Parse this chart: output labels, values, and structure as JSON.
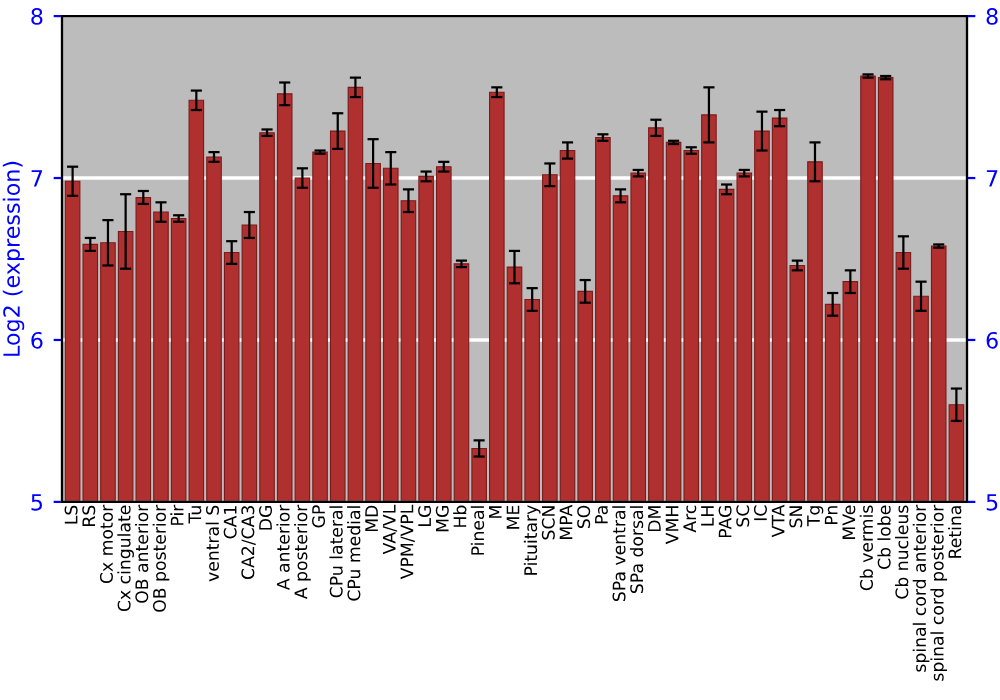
{
  "chart_data": {
    "type": "bar",
    "ylabel": "Log2 (expression)",
    "categories": [
      "LS",
      "RS",
      "Cx motor",
      "Cx cingulate",
      "OB anterior",
      "OB posterior",
      "Pir",
      "Tu",
      "ventral S",
      "CA1",
      "CA2/CA3",
      "DG",
      "A anterior",
      "A posterior",
      "GP",
      "CPu lateral",
      "CPu medial",
      "MD",
      "VA/VL",
      "VPM/VPL",
      "LG",
      "MG",
      "Hb",
      "Pineal",
      "M",
      "ME",
      "Pituitary",
      "SCN",
      "MPA",
      "SO",
      "Pa",
      "SPa ventral",
      "SPa dorsal",
      "DM",
      "VMH",
      "Arc",
      "LH",
      "PAG",
      "SC",
      "IC",
      "VTA",
      "SN",
      "Tg",
      "Pn",
      "MVe",
      "Cb vermis",
      "Cb lobe",
      "Cb nucleus",
      "spinal cord anterior",
      "spinal cord posterior",
      "Retina"
    ],
    "values": [
      6.98,
      6.59,
      6.6,
      6.67,
      6.88,
      6.79,
      6.75,
      7.48,
      7.13,
      6.54,
      6.71,
      7.28,
      7.52,
      7.0,
      7.16,
      7.29,
      7.56,
      7.09,
      7.06,
      6.86,
      7.01,
      7.07,
      6.47,
      5.33,
      7.53,
      6.45,
      6.25,
      7.02,
      7.17,
      6.3,
      7.25,
      6.89,
      7.03,
      7.31,
      7.22,
      7.17,
      7.39,
      6.93,
      7.03,
      7.29,
      7.37,
      6.46,
      7.1,
      6.22,
      6.36,
      7.63,
      7.62,
      6.54,
      6.27,
      6.58,
      5.6
    ],
    "errors": [
      0.09,
      0.04,
      0.14,
      0.23,
      0.04,
      0.06,
      0.02,
      0.06,
      0.03,
      0.07,
      0.08,
      0.02,
      0.07,
      0.06,
      0.01,
      0.11,
      0.06,
      0.15,
      0.1,
      0.07,
      0.03,
      0.03,
      0.02,
      0.05,
      0.03,
      0.1,
      0.07,
      0.07,
      0.05,
      0.07,
      0.02,
      0.04,
      0.02,
      0.05,
      0.01,
      0.02,
      0.17,
      0.03,
      0.02,
      0.12,
      0.05,
      0.03,
      0.12,
      0.07,
      0.07,
      0.01,
      0.01,
      0.1,
      0.09,
      0.01,
      0.1
    ],
    "color": "#b03030",
    "ylim": [
      5,
      8
    ],
    "yticks": [
      5,
      6,
      7,
      8
    ],
    "y2lim": [
      5,
      8
    ],
    "y2ticks": [
      5,
      6,
      7,
      8
    ],
    "grid": "y"
  }
}
